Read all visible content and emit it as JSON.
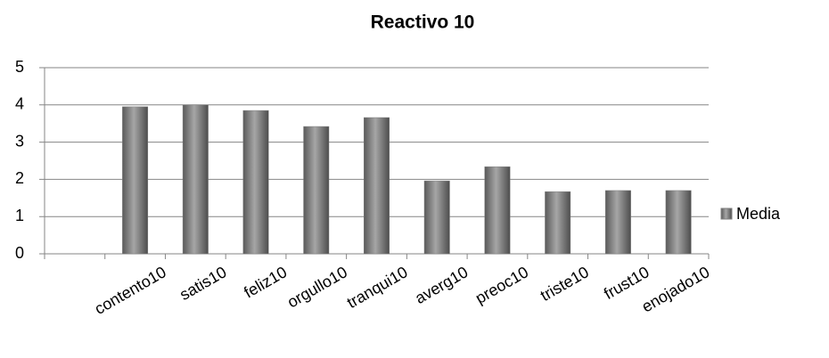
{
  "chart_data": {
    "type": "bar",
    "title": "Reactivo 10",
    "categories": [
      null,
      "contento10",
      "satis10",
      "feliz10",
      "orgullo10",
      "tranqui10",
      "averg10",
      "preoc10",
      "triste10",
      "frust10",
      "enojado10"
    ],
    "series": [
      {
        "name": "Media",
        "color": "#7f7f7f",
        "values": [
          null,
          3.95,
          4.0,
          3.85,
          3.42,
          3.66,
          1.96,
          2.34,
          1.67,
          1.7,
          1.7
        ]
      }
    ],
    "ylim": [
      0,
      5
    ],
    "yticks": [
      0,
      1,
      2,
      3,
      4,
      5
    ],
    "grid": true,
    "legend": "right"
  }
}
